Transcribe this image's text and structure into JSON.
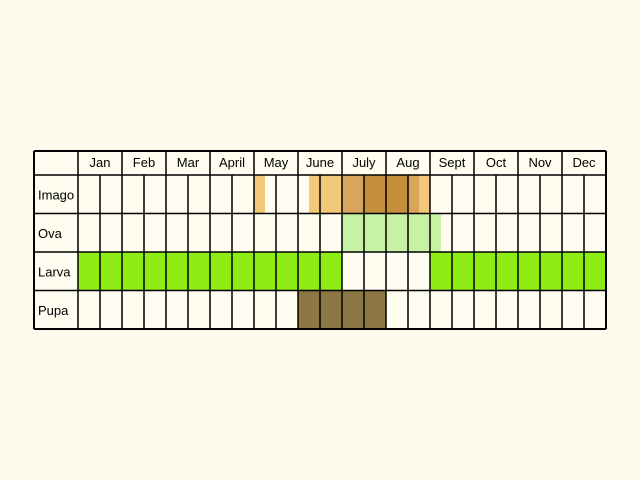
{
  "months": [
    "Jan",
    "Feb",
    "Mar",
    "Apr",
    "May",
    "June",
    "July",
    "Aug",
    "Sept",
    "Oct",
    "Nov",
    "Dec"
  ],
  "month_labels": [
    "Jan",
    "Feb",
    "Mar",
    "April",
    "May",
    "June",
    "July",
    "Aug",
    "Sept",
    "Oct",
    "Nov",
    "Dec"
  ],
  "stages": [
    {
      "id": "imago",
      "label": "Imago",
      "segments": [
        {
          "start": 4.0,
          "end": 4.25,
          "color": "#f2c97a"
        },
        {
          "start": 5.25,
          "end": 6.0,
          "color": "#f2c97a"
        },
        {
          "start": 6.0,
          "end": 6.5,
          "color": "#d9a45c"
        },
        {
          "start": 6.5,
          "end": 7.0,
          "color": "#c68f3b"
        },
        {
          "start": 7.0,
          "end": 7.5,
          "color": "#c68f3b"
        },
        {
          "start": 7.5,
          "end": 7.75,
          "color": "#d9a45c"
        },
        {
          "start": 7.75,
          "end": 8.0,
          "color": "#f2c97a"
        }
      ]
    },
    {
      "id": "ova",
      "label": "Ova",
      "segments": [
        {
          "start": 6.0,
          "end": 8.25,
          "color": "#c7f2a4"
        }
      ]
    },
    {
      "id": "larva",
      "label": "Larva",
      "segments": [
        {
          "start": 0.0,
          "end": 6.0,
          "color": "#8cec14"
        },
        {
          "start": 8.0,
          "end": 12.0,
          "color": "#8cec14"
        }
      ]
    },
    {
      "id": "pupa",
      "label": "Pupa",
      "segments": [
        {
          "start": 5.0,
          "end": 7.0,
          "color": "#8c7641"
        }
      ]
    }
  ],
  "colors": {
    "background": "#fdfbeb",
    "cell": "#fffdf0",
    "grid": "#000000"
  }
}
